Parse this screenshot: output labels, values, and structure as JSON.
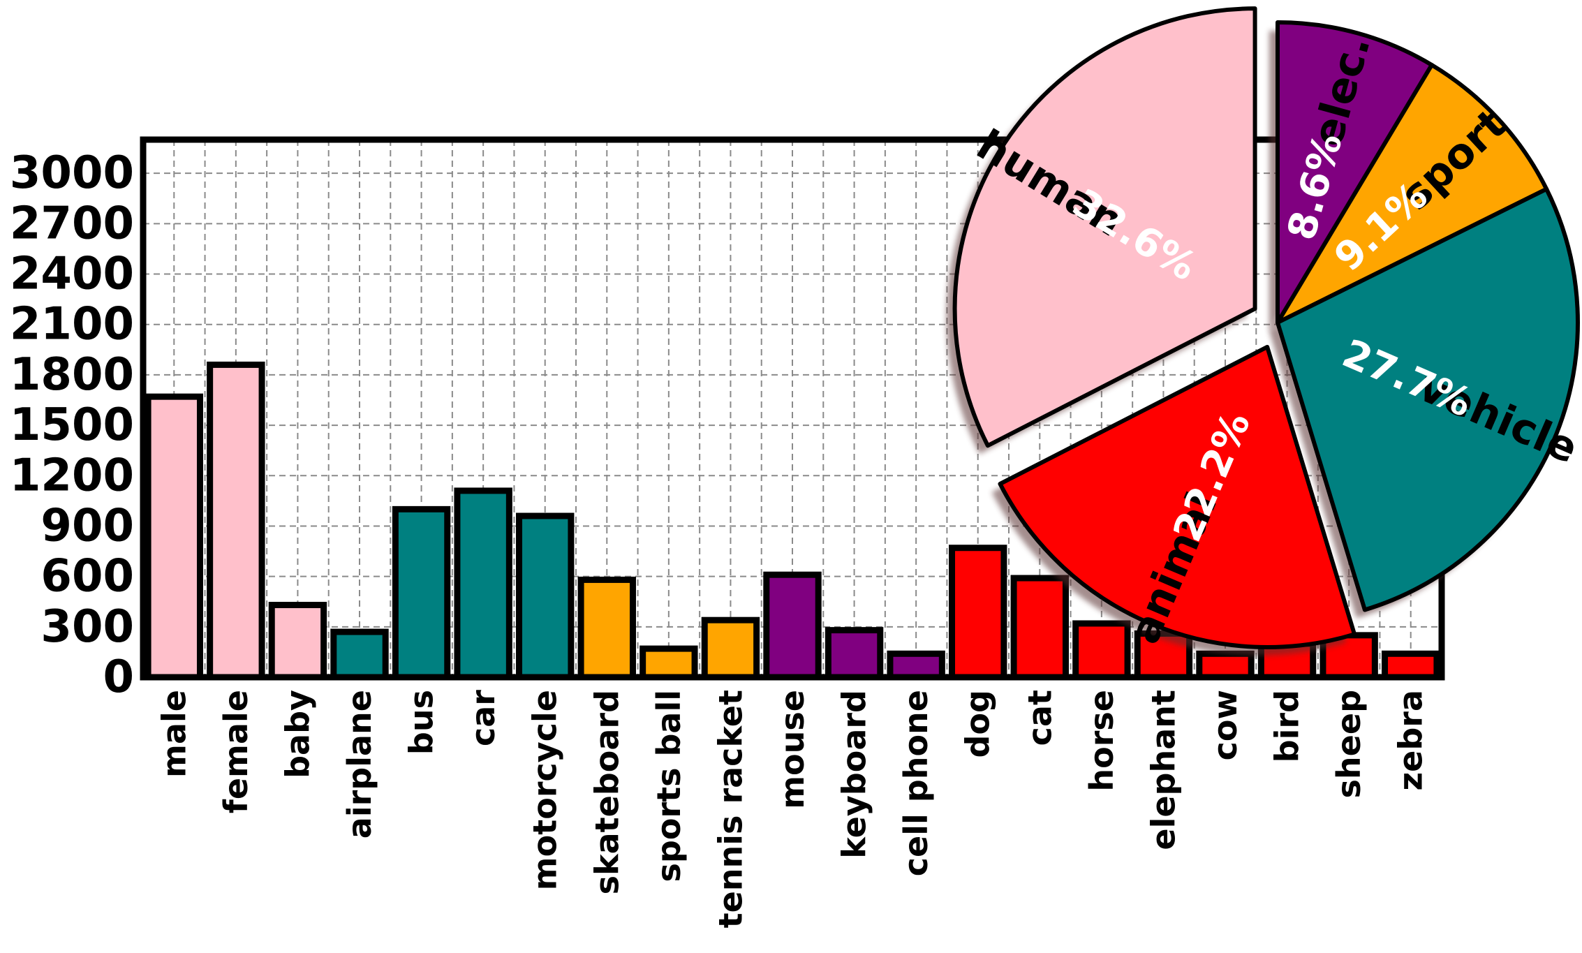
{
  "chart_data": [
    {
      "type": "bar",
      "categories": [
        "male",
        "female",
        "baby",
        "airplane",
        "bus",
        "car",
        "motorcycle",
        "skateboard",
        "sports ball",
        "tennis racket",
        "mouse",
        "keyboard",
        "cell phone",
        "dog",
        "cat",
        "horse",
        "elephant",
        "cow",
        "bird",
        "sheep",
        "zebra"
      ],
      "values": [
        1670,
        1860,
        430,
        270,
        1000,
        1110,
        960,
        580,
        170,
        340,
        610,
        280,
        140,
        770,
        590,
        320,
        260,
        140,
        200,
        250,
        140
      ],
      "groups": [
        "human",
        "human",
        "human",
        "vehicle",
        "vehicle",
        "vehicle",
        "vehicle",
        "sport",
        "sport",
        "sport",
        "elec.",
        "elec.",
        "elec.",
        "animal",
        "animal",
        "animal",
        "animal",
        "animal",
        "animal",
        "animal",
        "animal"
      ],
      "group_colors": {
        "human": "#FFC0CB",
        "vehicle": "#008080",
        "sport": "#FFA500",
        "elec.": "#800080",
        "animal": "#FF0000"
      },
      "yticks": [
        0,
        300,
        600,
        900,
        1200,
        1500,
        1800,
        2100,
        2400,
        2700,
        3000
      ],
      "ylim": [
        0,
        3200
      ],
      "grid": true
    },
    {
      "type": "pie",
      "slices": [
        {
          "label": "elec.",
          "value": 8.6,
          "pct_label": "8.6%",
          "color": "#800080"
        },
        {
          "label": "sport",
          "value": 9.1,
          "pct_label": "9.1%",
          "color": "#FFA500"
        },
        {
          "label": "vehicle",
          "value": 27.7,
          "pct_label": "27.7%",
          "color": "#008080"
        },
        {
          "label": "animal",
          "value": 22.2,
          "pct_label": "22.2%",
          "color": "#FF0000"
        },
        {
          "label": "human",
          "value": 32.6,
          "pct_label": "32.6%",
          "color": "#FFC0CB"
        }
      ],
      "start_angle_deg": 90,
      "direction": "clockwise",
      "exploded": [
        "animal",
        "human"
      ],
      "shadow": true
    }
  ]
}
